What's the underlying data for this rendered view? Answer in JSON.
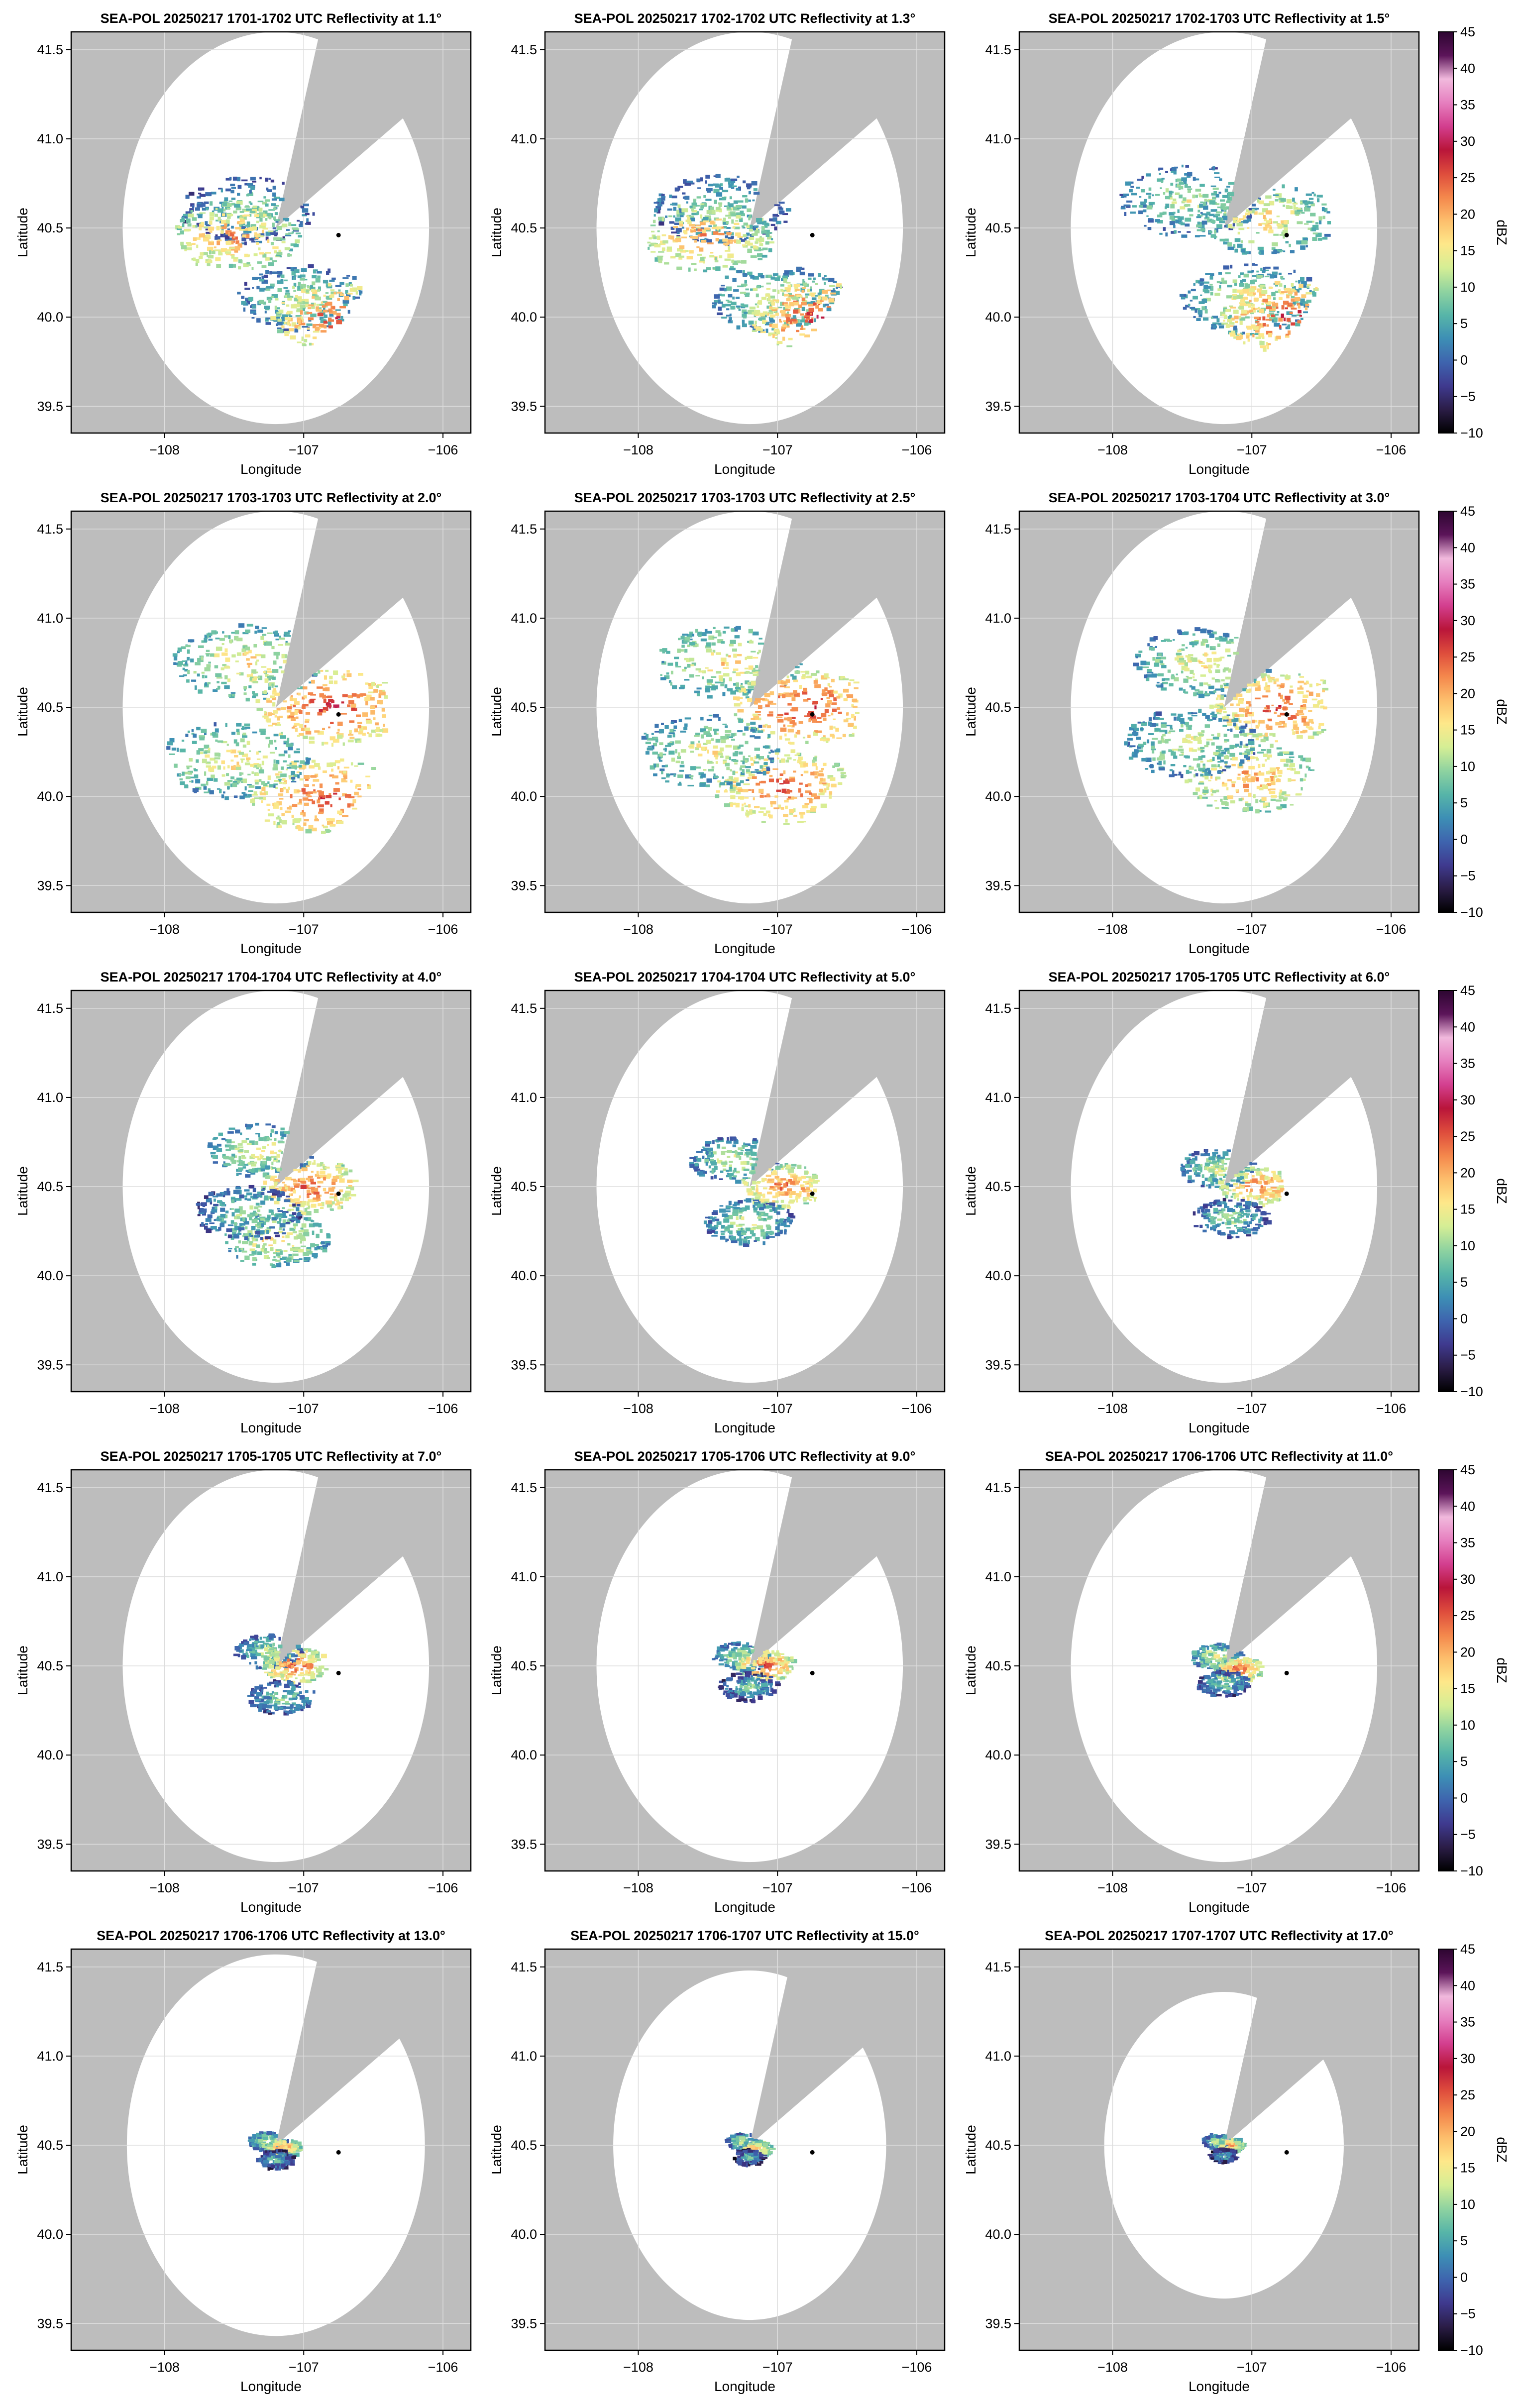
{
  "figure": {
    "colorbar": {
      "label": "dBZ",
      "ticks": [
        -10,
        -5,
        0,
        5,
        10,
        15,
        20,
        25,
        30,
        35,
        40,
        45
      ],
      "vmin": -10,
      "vmax": 45,
      "colors": [
        "#000000",
        "#2b1d47",
        "#3f3a8f",
        "#3e64ae",
        "#3d8fb5",
        "#57b5a8",
        "#8fd3a0",
        "#d5ee95",
        "#fee88a",
        "#fdbe6c",
        "#f4874c",
        "#de4c3c",
        "#b9153a",
        "#d33f8f",
        "#e67fbf",
        "#f1b9dd",
        "#5c1459",
        "#2d0631"
      ]
    },
    "colors": {
      "background": "#bdbdbd",
      "coverage": "#ffffff",
      "frame": "#000000",
      "grid": "#dddddd"
    }
  },
  "chart_data": [
    {
      "type": "heatmap",
      "title": "SEA-POL 20250217 1701-1702 UTC Reflectivity at 1.1°",
      "xlabel": "Longitude",
      "ylabel": "Latitude",
      "xlim": [
        -108.67,
        -105.8
      ],
      "ylim": [
        39.35,
        41.6
      ],
      "xticks": [
        -108,
        -107,
        -106
      ],
      "yticks": [
        39.5,
        40.0,
        40.5,
        41.0,
        41.5
      ],
      "xticklabels": [
        "−108",
        "−107",
        "−106"
      ],
      "yticklabels": [
        "39.5",
        "40.0",
        "40.5",
        "41.0",
        "41.5"
      ],
      "grid": true,
      "colorbar": false,
      "radar_site": [
        -107.2,
        40.5
      ],
      "marker": [
        -106.75,
        40.46
      ],
      "coverage_radius_deg": 1.1,
      "blocked_azimuth_deg": [
        16,
        56
      ],
      "echo_extent_deg": 0.62,
      "cells": [
        {
          "lon": -107.4,
          "lat": 40.6,
          "dbz": 12
        },
        {
          "lon": -107.0,
          "lat": 40.1,
          "dbz": 14
        },
        {
          "lon": -106.75,
          "lat": 40.0,
          "dbz": 26
        },
        {
          "lon": -107.5,
          "lat": 40.45,
          "dbz": 22
        }
      ]
    },
    {
      "type": "heatmap",
      "title": "SEA-POL 20250217 1702-1702 UTC Reflectivity at 1.3°",
      "xlabel": "Longitude",
      "ylabel": "Latitude",
      "xlim": [
        -108.67,
        -105.8
      ],
      "ylim": [
        39.35,
        41.6
      ],
      "xticks": [
        -108,
        -107,
        -106
      ],
      "yticks": [
        39.5,
        40.0,
        40.5,
        41.0,
        41.5
      ],
      "xticklabels": [
        "−108",
        "−107",
        "−106"
      ],
      "yticklabels": [
        "39.5",
        "40.0",
        "40.5",
        "41.0",
        "41.5"
      ],
      "grid": true,
      "colorbar": false,
      "radar_site": [
        -107.2,
        40.5
      ],
      "marker": [
        -106.75,
        40.46
      ],
      "coverage_radius_deg": 1.1,
      "blocked_azimuth_deg": [
        16,
        56
      ],
      "echo_extent_deg": 0.64,
      "cells": [
        {
          "lon": -107.4,
          "lat": 40.6,
          "dbz": 13
        },
        {
          "lon": -107.0,
          "lat": 40.1,
          "dbz": 15
        },
        {
          "lon": -106.72,
          "lat": 40.0,
          "dbz": 27
        },
        {
          "lon": -107.5,
          "lat": 40.45,
          "dbz": 22
        }
      ]
    },
    {
      "type": "heatmap",
      "title": "SEA-POL 20250217 1702-1703 UTC Reflectivity at 1.5°",
      "xlabel": "Longitude",
      "ylabel": "Latitude",
      "xlim": [
        -108.67,
        -105.8
      ],
      "ylim": [
        39.35,
        41.6
      ],
      "xticks": [
        -108,
        -107,
        -106
      ],
      "yticks": [
        39.5,
        40.0,
        40.5,
        41.0,
        41.5
      ],
      "xticklabels": [
        "−108",
        "−107",
        "−106"
      ],
      "yticklabels": [
        "39.5",
        "40.0",
        "40.5",
        "41.0",
        "41.5"
      ],
      "grid": true,
      "colorbar": true,
      "radar_site": [
        -107.2,
        40.5
      ],
      "marker": [
        -106.75,
        40.46
      ],
      "coverage_radius_deg": 1.1,
      "blocked_azimuth_deg": [
        16,
        56
      ],
      "echo_extent_deg": 0.66,
      "cells": [
        {
          "lon": -107.45,
          "lat": 40.65,
          "dbz": 14
        },
        {
          "lon": -107.0,
          "lat": 40.1,
          "dbz": 16
        },
        {
          "lon": -106.72,
          "lat": 40.0,
          "dbz": 27
        },
        {
          "lon": -106.9,
          "lat": 40.55,
          "dbz": 18
        }
      ]
    },
    {
      "type": "heatmap",
      "title": "SEA-POL 20250217 1703-1703 UTC Reflectivity at 2.0°",
      "xlabel": "Longitude",
      "ylabel": "Latitude",
      "xlim": [
        -108.67,
        -105.8
      ],
      "ylim": [
        39.35,
        41.6
      ],
      "xticks": [
        -108,
        -107,
        -106
      ],
      "yticks": [
        39.5,
        40.0,
        40.5,
        41.0,
        41.5
      ],
      "xticklabels": [
        "−108",
        "−107",
        "−106"
      ],
      "yticklabels": [
        "39.5",
        "40.0",
        "40.5",
        "41.0",
        "41.5"
      ],
      "grid": true,
      "colorbar": false,
      "radar_site": [
        -107.2,
        40.5
      ],
      "marker": [
        -106.75,
        40.46
      ],
      "coverage_radius_deg": 1.1,
      "blocked_azimuth_deg": [
        16,
        56
      ],
      "echo_extent_deg": 0.7,
      "cells": [
        {
          "lon": -107.4,
          "lat": 40.75,
          "dbz": 18
        },
        {
          "lon": -106.8,
          "lat": 40.5,
          "dbz": 27
        },
        {
          "lon": -106.85,
          "lat": 40.0,
          "dbz": 26
        },
        {
          "lon": -107.5,
          "lat": 40.2,
          "dbz": 17
        }
      ]
    },
    {
      "type": "heatmap",
      "title": "SEA-POL 20250217 1703-1703 UTC Reflectivity at 2.5°",
      "xlabel": "Longitude",
      "ylabel": "Latitude",
      "xlim": [
        -108.67,
        -105.8
      ],
      "ylim": [
        39.35,
        41.6
      ],
      "xticks": [
        -108,
        -107,
        -106
      ],
      "yticks": [
        39.5,
        40.0,
        40.5,
        41.0,
        41.5
      ],
      "xticklabels": [
        "−108",
        "−107",
        "−106"
      ],
      "yticklabels": [
        "39.5",
        "40.0",
        "40.5",
        "41.0",
        "41.5"
      ],
      "grid": true,
      "colorbar": false,
      "radar_site": [
        -107.2,
        40.5
      ],
      "marker": [
        -106.75,
        40.46
      ],
      "coverage_radius_deg": 1.1,
      "blocked_azimuth_deg": [
        16,
        56
      ],
      "echo_extent_deg": 0.68,
      "cells": [
        {
          "lon": -107.35,
          "lat": 40.75,
          "dbz": 18
        },
        {
          "lon": -106.8,
          "lat": 40.5,
          "dbz": 27
        },
        {
          "lon": -106.95,
          "lat": 40.05,
          "dbz": 25
        },
        {
          "lon": -107.5,
          "lat": 40.25,
          "dbz": 16
        }
      ]
    },
    {
      "type": "heatmap",
      "title": "SEA-POL 20250217 1703-1704 UTC Reflectivity at 3.0°",
      "xlabel": "Longitude",
      "ylabel": "Latitude",
      "xlim": [
        -108.67,
        -105.8
      ],
      "ylim": [
        39.35,
        41.6
      ],
      "xticks": [
        -108,
        -107,
        -106
      ],
      "yticks": [
        39.5,
        40.0,
        40.5,
        41.0,
        41.5
      ],
      "xticklabels": [
        "−108",
        "−107",
        "−106"
      ],
      "yticklabels": [
        "39.5",
        "40.0",
        "40.5",
        "41.0",
        "41.5"
      ],
      "grid": true,
      "colorbar": true,
      "radar_site": [
        -107.2,
        40.5
      ],
      "marker": [
        -106.75,
        40.46
      ],
      "coverage_radius_deg": 1.1,
      "blocked_azimuth_deg": [
        16,
        56
      ],
      "echo_extent_deg": 0.64,
      "cells": [
        {
          "lon": -107.35,
          "lat": 40.75,
          "dbz": 17
        },
        {
          "lon": -106.8,
          "lat": 40.5,
          "dbz": 26
        },
        {
          "lon": -107.0,
          "lat": 40.1,
          "dbz": 22
        },
        {
          "lon": -107.45,
          "lat": 40.3,
          "dbz": 15
        }
      ]
    },
    {
      "type": "heatmap",
      "title": "SEA-POL 20250217 1704-1704 UTC Reflectivity at 4.0°",
      "xlabel": "Longitude",
      "ylabel": "Latitude",
      "xlim": [
        -108.67,
        -105.8
      ],
      "ylim": [
        39.35,
        41.6
      ],
      "xticks": [
        -108,
        -107,
        -106
      ],
      "yticks": [
        39.5,
        40.0,
        40.5,
        41.0,
        41.5
      ],
      "xticklabels": [
        "−108",
        "−107",
        "−106"
      ],
      "yticklabels": [
        "39.5",
        "40.0",
        "40.5",
        "41.0",
        "41.5"
      ],
      "grid": true,
      "colorbar": false,
      "radar_site": [
        -107.2,
        40.5
      ],
      "marker": [
        -106.75,
        40.46
      ],
      "coverage_radius_deg": 1.1,
      "blocked_azimuth_deg": [
        16,
        56
      ],
      "echo_extent_deg": 0.5,
      "cells": [
        {
          "lon": -107.3,
          "lat": 40.7,
          "dbz": 16
        },
        {
          "lon": -106.95,
          "lat": 40.5,
          "dbz": 25
        },
        {
          "lon": -107.2,
          "lat": 40.2,
          "dbz": 18
        },
        {
          "lon": -107.4,
          "lat": 40.35,
          "dbz": 12
        }
      ]
    },
    {
      "type": "heatmap",
      "title": "SEA-POL 20250217 1704-1704 UTC Reflectivity at 5.0°",
      "xlabel": "Longitude",
      "ylabel": "Latitude",
      "xlim": [
        -108.67,
        -105.8
      ],
      "ylim": [
        39.35,
        41.6
      ],
      "xticks": [
        -108,
        -107,
        -106
      ],
      "yticks": [
        39.5,
        40.0,
        40.5,
        41.0,
        41.5
      ],
      "xticklabels": [
        "−108",
        "−107",
        "−106"
      ],
      "yticklabels": [
        "39.5",
        "40.0",
        "40.5",
        "41.0",
        "41.5"
      ],
      "grid": true,
      "colorbar": false,
      "radar_site": [
        -107.2,
        40.5
      ],
      "marker": [
        -106.75,
        40.46
      ],
      "coverage_radius_deg": 1.1,
      "blocked_azimuth_deg": [
        16,
        56
      ],
      "echo_extent_deg": 0.42,
      "cells": [
        {
          "lon": -107.3,
          "lat": 40.65,
          "dbz": 15
        },
        {
          "lon": -106.95,
          "lat": 40.5,
          "dbz": 24
        },
        {
          "lon": -107.2,
          "lat": 40.3,
          "dbz": 14
        }
      ]
    },
    {
      "type": "heatmap",
      "title": "SEA-POL 20250217 1705-1705 UTC Reflectivity at 6.0°",
      "xlabel": "Longitude",
      "ylabel": "Latitude",
      "xlim": [
        -108.67,
        -105.8
      ],
      "ylim": [
        39.35,
        41.6
      ],
      "xticks": [
        -108,
        -107,
        -106
      ],
      "yticks": [
        39.5,
        40.0,
        40.5,
        41.0,
        41.5
      ],
      "xticklabels": [
        "−108",
        "−107",
        "−106"
      ],
      "yticklabels": [
        "39.5",
        "40.0",
        "40.5",
        "41.0",
        "41.5"
      ],
      "grid": true,
      "colorbar": true,
      "radar_site": [
        -107.2,
        40.5
      ],
      "marker": [
        -106.75,
        40.46
      ],
      "coverage_radius_deg": 1.1,
      "blocked_azimuth_deg": [
        16,
        56
      ],
      "echo_extent_deg": 0.36,
      "cells": [
        {
          "lon": -107.25,
          "lat": 40.6,
          "dbz": 14
        },
        {
          "lon": -106.95,
          "lat": 40.5,
          "dbz": 24
        },
        {
          "lon": -107.15,
          "lat": 40.32,
          "dbz": 12
        }
      ]
    },
    {
      "type": "heatmap",
      "title": "SEA-POL 20250217 1705-1705 UTC Reflectivity at 7.0°",
      "xlabel": "Longitude",
      "ylabel": "Latitude",
      "xlim": [
        -108.67,
        -105.8
      ],
      "ylim": [
        39.35,
        41.6
      ],
      "xticks": [
        -108,
        -107,
        -106
      ],
      "yticks": [
        39.5,
        40.0,
        40.5,
        41.0,
        41.5
      ],
      "xticklabels": [
        "−108",
        "−107",
        "−106"
      ],
      "yticklabels": [
        "39.5",
        "40.0",
        "40.5",
        "41.0",
        "41.5"
      ],
      "grid": true,
      "colorbar": false,
      "radar_site": [
        -107.2,
        40.5
      ],
      "marker": [
        -106.75,
        40.46
      ],
      "coverage_radius_deg": 1.1,
      "blocked_azimuth_deg": [
        16,
        56
      ],
      "echo_extent_deg": 0.32,
      "cells": [
        {
          "lon": -107.25,
          "lat": 40.58,
          "dbz": 13
        },
        {
          "lon": -107.05,
          "lat": 40.5,
          "dbz": 25
        },
        {
          "lon": -107.15,
          "lat": 40.32,
          "dbz": 11
        }
      ]
    },
    {
      "type": "heatmap",
      "title": "SEA-POL 20250217 1705-1706 UTC Reflectivity at 9.0°",
      "xlabel": "Longitude",
      "ylabel": "Latitude",
      "xlim": [
        -108.67,
        -105.8
      ],
      "ylim": [
        39.35,
        41.6
      ],
      "xticks": [
        -108,
        -107,
        -106
      ],
      "yticks": [
        39.5,
        40.0,
        40.5,
        41.0,
        41.5
      ],
      "xticklabels": [
        "−108",
        "−107",
        "−106"
      ],
      "yticklabels": [
        "39.5",
        "40.0",
        "40.5",
        "41.0",
        "41.5"
      ],
      "grid": true,
      "colorbar": false,
      "radar_site": [
        -107.2,
        40.5
      ],
      "marker": [
        -106.75,
        40.46
      ],
      "coverage_radius_deg": 1.1,
      "blocked_azimuth_deg": [
        16,
        56
      ],
      "echo_extent_deg": 0.28,
      "cells": [
        {
          "lon": -107.25,
          "lat": 40.55,
          "dbz": 14
        },
        {
          "lon": -107.08,
          "lat": 40.5,
          "dbz": 25
        },
        {
          "lon": -107.2,
          "lat": 40.38,
          "dbz": 10
        }
      ]
    },
    {
      "type": "heatmap",
      "title": "SEA-POL 20250217 1706-1706 UTC Reflectivity at 11.0°",
      "xlabel": "Longitude",
      "ylabel": "Latitude",
      "xlim": [
        -108.67,
        -105.8
      ],
      "ylim": [
        39.35,
        41.6
      ],
      "xticks": [
        -108,
        -107,
        -106
      ],
      "yticks": [
        39.5,
        40.0,
        40.5,
        41.0,
        41.5
      ],
      "xticklabels": [
        "−108",
        "−107",
        "−106"
      ],
      "yticklabels": [
        "39.5",
        "40.0",
        "40.5",
        "41.0",
        "41.5"
      ],
      "grid": true,
      "colorbar": true,
      "radar_site": [
        -107.2,
        40.5
      ],
      "marker": [
        -106.75,
        40.46
      ],
      "coverage_radius_deg": 1.1,
      "blocked_azimuth_deg": [
        16,
        56
      ],
      "echo_extent_deg": 0.24,
      "cells": [
        {
          "lon": -107.25,
          "lat": 40.55,
          "dbz": 16
        },
        {
          "lon": -107.1,
          "lat": 40.48,
          "dbz": 24
        },
        {
          "lon": -107.2,
          "lat": 40.4,
          "dbz": 11
        }
      ]
    },
    {
      "type": "heatmap",
      "title": "SEA-POL 20250217 1706-1706 UTC Reflectivity at 13.0°",
      "xlabel": "Longitude",
      "ylabel": "Latitude",
      "xlim": [
        -108.67,
        -105.8
      ],
      "ylim": [
        39.35,
        41.6
      ],
      "xticks": [
        -108,
        -107,
        -106
      ],
      "yticks": [
        39.5,
        40.0,
        40.5,
        41.0,
        41.5
      ],
      "xticklabels": [
        "−108",
        "−107",
        "−106"
      ],
      "yticklabels": [
        "39.5",
        "40.0",
        "40.5",
        "41.0",
        "41.5"
      ],
      "grid": true,
      "colorbar": false,
      "radar_site": [
        -107.2,
        40.5
      ],
      "marker": [
        -106.75,
        40.46
      ],
      "coverage_radius_deg": 1.07,
      "blocked_azimuth_deg": [
        16,
        56
      ],
      "echo_extent_deg": 0.18,
      "cells": [
        {
          "lon": -107.25,
          "lat": 40.52,
          "dbz": 15
        },
        {
          "lon": -107.15,
          "lat": 40.48,
          "dbz": 22
        },
        {
          "lon": -107.2,
          "lat": 40.42,
          "dbz": 9
        }
      ]
    },
    {
      "type": "heatmap",
      "title": "SEA-POL 20250217 1706-1707 UTC Reflectivity at 15.0°",
      "xlabel": "Longitude",
      "ylabel": "Latitude",
      "xlim": [
        -108.67,
        -105.8
      ],
      "ylim": [
        39.35,
        41.6
      ],
      "xticks": [
        -108,
        -107,
        -106
      ],
      "yticks": [
        39.5,
        40.0,
        40.5,
        41.0,
        41.5
      ],
      "xticklabels": [
        "−108",
        "−107",
        "−106"
      ],
      "yticklabels": [
        "39.5",
        "40.0",
        "40.5",
        "41.0",
        "41.5"
      ],
      "grid": true,
      "colorbar": false,
      "radar_site": [
        -107.2,
        40.5
      ],
      "marker": [
        -106.75,
        40.46
      ],
      "coverage_radius_deg": 0.98,
      "blocked_azimuth_deg": [
        16,
        56
      ],
      "echo_extent_deg": 0.15,
      "cells": [
        {
          "lon": -107.25,
          "lat": 40.52,
          "dbz": 14
        },
        {
          "lon": -107.15,
          "lat": 40.48,
          "dbz": 21
        },
        {
          "lon": -107.2,
          "lat": 40.43,
          "dbz": 8
        }
      ]
    },
    {
      "type": "heatmap",
      "title": "SEA-POL 20250217 1707-1707 UTC Reflectivity at 17.0°",
      "xlabel": "Longitude",
      "ylabel": "Latitude",
      "xlim": [
        -108.67,
        -105.8
      ],
      "ylim": [
        39.35,
        41.6
      ],
      "xticks": [
        -108,
        -107,
        -106
      ],
      "yticks": [
        39.5,
        40.0,
        40.5,
        41.0,
        41.5
      ],
      "xticklabels": [
        "−108",
        "−107",
        "−106"
      ],
      "yticklabels": [
        "39.5",
        "40.0",
        "40.5",
        "41.0",
        "41.5"
      ],
      "grid": true,
      "colorbar": true,
      "radar_site": [
        -107.2,
        40.5
      ],
      "marker": [
        -106.75,
        40.46
      ],
      "coverage_radius_deg": 0.86,
      "blocked_azimuth_deg": [
        16,
        56
      ],
      "echo_extent_deg": 0.13,
      "cells": [
        {
          "lon": -107.25,
          "lat": 40.52,
          "dbz": 14
        },
        {
          "lon": -107.15,
          "lat": 40.5,
          "dbz": 21
        },
        {
          "lon": -107.2,
          "lat": 40.44,
          "dbz": 8
        }
      ]
    }
  ]
}
